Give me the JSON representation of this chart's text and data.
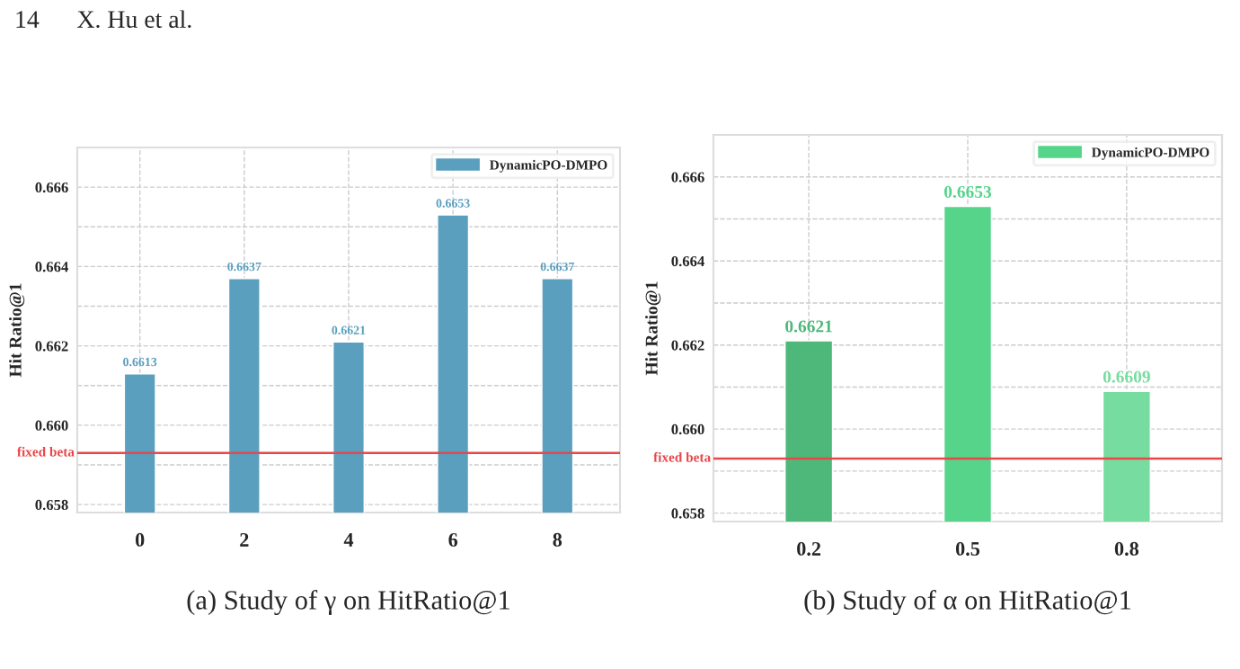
{
  "chart_data": [
    {
      "type": "bar",
      "ylabel": "Hit Ratio@1",
      "categories": [
        "0",
        "2",
        "4",
        "6",
        "8"
      ],
      "series": [
        {
          "name": "DynamicPO-DMPO",
          "color": "#5a9fbd",
          "values": [
            0.6613,
            0.6637,
            0.6621,
            0.6653,
            0.6637
          ]
        }
      ],
      "ylim": [
        0.6578,
        0.667
      ],
      "yticks": [
        0.658,
        {
          "value": 0.659,
          "label": null
        },
        {
          "value": 0.66,
          "label": "0.660"
        },
        {
          "value": 0.661,
          "label": null
        },
        0.662,
        {
          "value": 0.663,
          "label": null
        },
        0.664,
        {
          "value": 0.665,
          "label": null
        },
        0.666
      ],
      "ref_lines": [
        {
          "axis": "y",
          "value": 0.6593,
          "label": "fixed beta",
          "color": "#e8474a"
        }
      ],
      "data_labels": true,
      "grid": true,
      "legend": "top right",
      "annotations": [
        "14      X. Hu et al.",
        "(a) Study of γ on HitRatio@1"
      ]
    },
    {
      "type": "bar",
      "ylabel": "Hit Ratio@1",
      "categories": [
        "0.2",
        "0.5",
        "0.8"
      ],
      "series": [
        {
          "name": "DynamicPO-DMPO",
          "color": "#55d48a",
          "colors": [
            "#4db87a",
            "#55d48a",
            "#77dc9f"
          ],
          "values": [
            0.6621,
            0.6653,
            0.6609
          ]
        }
      ],
      "ylim": [
        0.6578,
        0.667
      ],
      "yticks": [
        0.658,
        {
          "value": 0.659,
          "label": null
        },
        {
          "value": 0.66,
          "label": "0.660"
        },
        {
          "value": 0.661,
          "label": null
        },
        0.662,
        {
          "value": 0.663,
          "label": null
        },
        0.664,
        {
          "value": 0.665,
          "label": null
        },
        0.666
      ],
      "ref_lines": [
        {
          "axis": "y",
          "value": 0.6593,
          "label": "fixed beta",
          "color": "#e8474a"
        }
      ],
      "data_labels": true,
      "grid": true,
      "legend": "top right",
      "annotations": [
        "(b) Study of α on HitRatio@1"
      ]
    }
  ]
}
